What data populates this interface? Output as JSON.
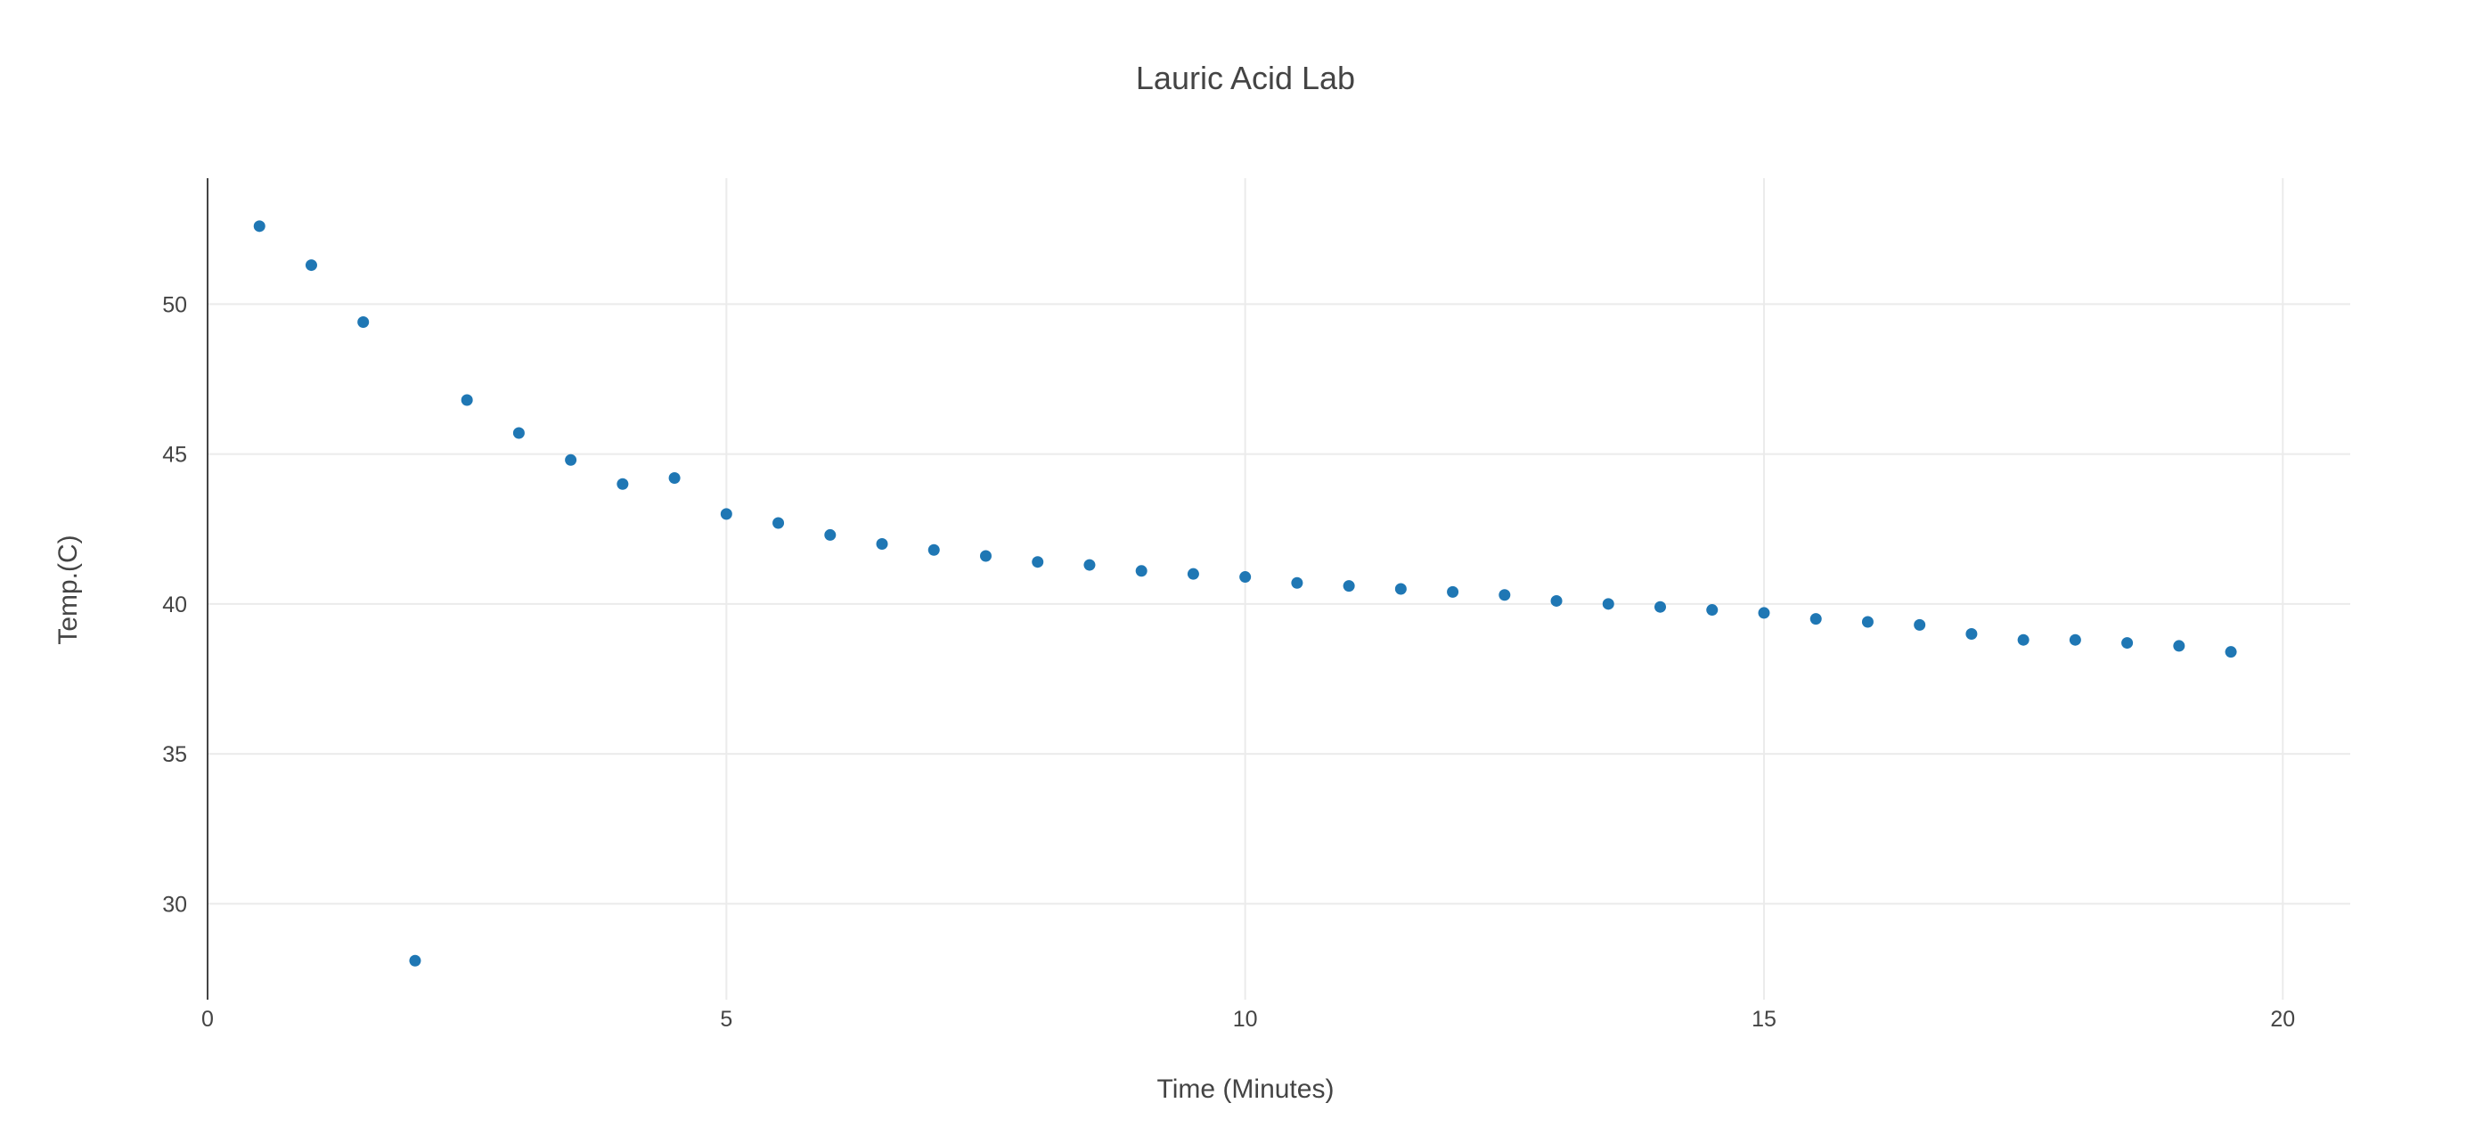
{
  "chart_data": {
    "type": "scatter",
    "title": "Lauric Acid Lab",
    "xlabel": "Time (Minutes)",
    "ylabel": "Temp.(C)",
    "xlim": [
      0,
      20.65
    ],
    "ylim": [
      26.8,
      54.2
    ],
    "x_ticks": [
      0,
      5,
      10,
      15,
      20
    ],
    "y_ticks": [
      30,
      35,
      40,
      45,
      50
    ],
    "grid": true,
    "color": "#1f77b4",
    "points": [
      {
        "x": 0.5,
        "y": 52.6
      },
      {
        "x": 1.0,
        "y": 51.3
      },
      {
        "x": 1.5,
        "y": 49.4
      },
      {
        "x": 2.0,
        "y": 28.1
      },
      {
        "x": 2.5,
        "y": 46.8
      },
      {
        "x": 3.0,
        "y": 45.7
      },
      {
        "x": 3.5,
        "y": 44.8
      },
      {
        "x": 4.0,
        "y": 44.0
      },
      {
        "x": 4.5,
        "y": 44.2
      },
      {
        "x": 5.0,
        "y": 43.0
      },
      {
        "x": 5.5,
        "y": 42.7
      },
      {
        "x": 6.0,
        "y": 42.3
      },
      {
        "x": 6.5,
        "y": 42.0
      },
      {
        "x": 7.0,
        "y": 41.8
      },
      {
        "x": 7.5,
        "y": 41.6
      },
      {
        "x": 8.0,
        "y": 41.4
      },
      {
        "x": 8.5,
        "y": 41.3
      },
      {
        "x": 9.0,
        "y": 41.1
      },
      {
        "x": 9.5,
        "y": 41.0
      },
      {
        "x": 10.0,
        "y": 40.9
      },
      {
        "x": 10.5,
        "y": 40.7
      },
      {
        "x": 11.0,
        "y": 40.6
      },
      {
        "x": 11.5,
        "y": 40.5
      },
      {
        "x": 12.0,
        "y": 40.4
      },
      {
        "x": 12.5,
        "y": 40.3
      },
      {
        "x": 13.0,
        "y": 40.1
      },
      {
        "x": 13.5,
        "y": 40.0
      },
      {
        "x": 14.0,
        "y": 39.9
      },
      {
        "x": 14.5,
        "y": 39.8
      },
      {
        "x": 15.0,
        "y": 39.7
      },
      {
        "x": 15.5,
        "y": 39.5
      },
      {
        "x": 16.0,
        "y": 39.4
      },
      {
        "x": 16.5,
        "y": 39.3
      },
      {
        "x": 17.0,
        "y": 39.0
      },
      {
        "x": 17.5,
        "y": 38.8
      },
      {
        "x": 18.0,
        "y": 38.8
      },
      {
        "x": 18.5,
        "y": 38.7
      },
      {
        "x": 19.0,
        "y": 38.6
      },
      {
        "x": 19.5,
        "y": 38.4
      }
    ]
  }
}
